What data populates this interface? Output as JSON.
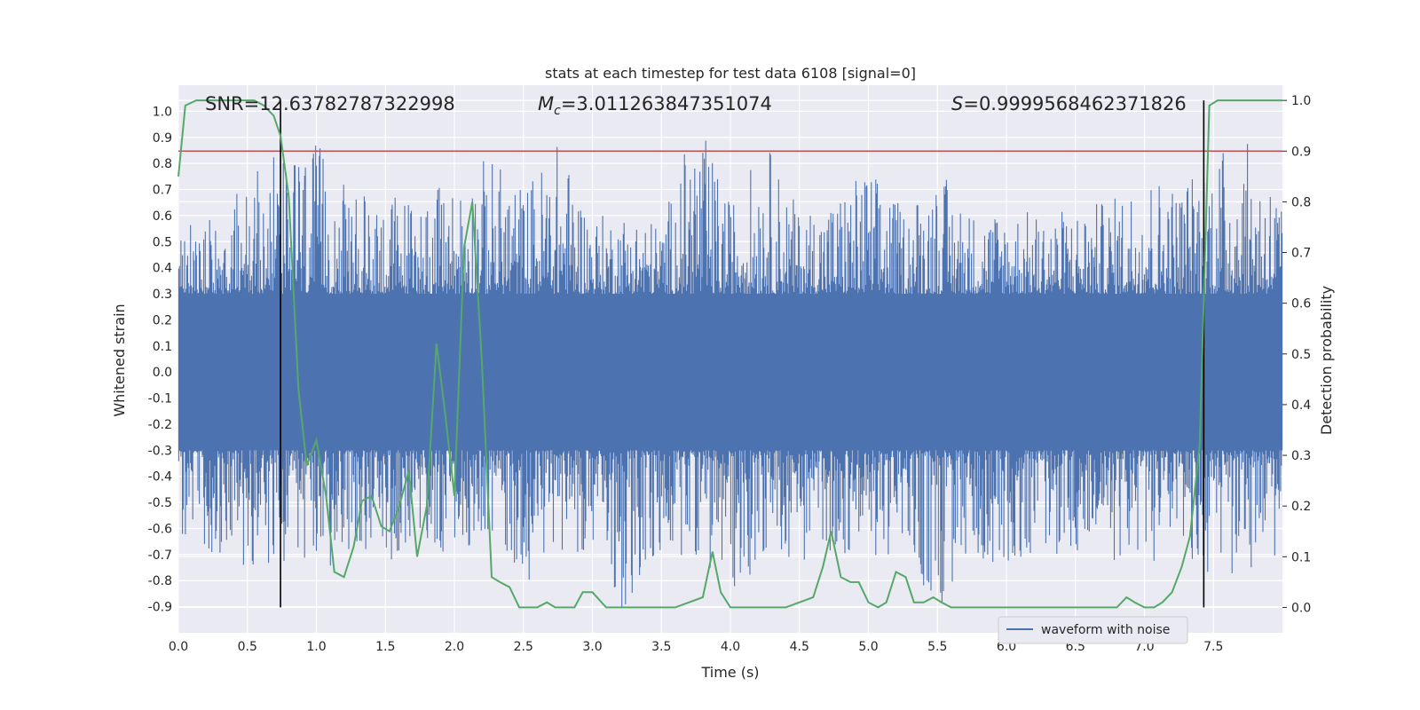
{
  "chart_data": {
    "type": "line",
    "title": "stats at each timestep for test data 6108 [signal=0]",
    "xlabel": "Time (s)",
    "ylabel_left": "Whitened strain",
    "ylabel_right": "Detection probability",
    "xlim": [
      0,
      8
    ],
    "ylim_left": [
      -1.0,
      1.1
    ],
    "ylim_right": [
      -0.05,
      1.03
    ],
    "x_ticks": [
      "0.0",
      "0.5",
      "1.0",
      "1.5",
      "2.0",
      "2.5",
      "3.0",
      "3.5",
      "4.0",
      "4.5",
      "5.0",
      "5.5",
      "6.0",
      "6.5",
      "7.0",
      "7.5"
    ],
    "y_left_ticks": [
      "1.0",
      "0.9",
      "0.8",
      "0.7",
      "0.6",
      "0.5",
      "0.4",
      "0.3",
      "0.2",
      "0.1",
      "0.0",
      "-0.1",
      "-0.2",
      "-0.3",
      "-0.4",
      "-0.5",
      "-0.6",
      "-0.7",
      "-0.8",
      "-0.9"
    ],
    "y_right_ticks": [
      "1.0",
      "0.9",
      "0.8",
      "0.7",
      "0.6",
      "0.5",
      "0.4",
      "0.3",
      "0.2",
      "0.1",
      "0.0"
    ],
    "grid": true,
    "annotations": {
      "snr": "SNR=12.63782787322998",
      "mc_symbol": "M",
      "mc_sub": "c",
      "mc_value": "=3.011263847351074",
      "s_symbol": "S",
      "s_value": "=0.9999568462371826"
    },
    "threshold": {
      "y": 0.9,
      "axis": "right",
      "color": "#c44e52"
    },
    "vlines": [
      0.74,
      7.43
    ],
    "legend": {
      "label": "waveform with noise",
      "placement": "lower-right"
    },
    "series": [
      {
        "name": "waveform with noise",
        "axis": "left",
        "color": "#4c72b0",
        "envelope": {
          "x": [
            0.0,
            0.25,
            0.5,
            0.75,
            1.0,
            1.25,
            1.5,
            1.75,
            2.0,
            2.25,
            2.5,
            2.75,
            3.0,
            3.25,
            3.5,
            3.75,
            4.0,
            4.25,
            4.5,
            4.75,
            5.0,
            5.25,
            5.5,
            5.75,
            6.0,
            6.25,
            6.5,
            6.75,
            7.0,
            7.25,
            7.5,
            7.75,
            8.0
          ],
          "upper": [
            0.52,
            0.65,
            0.73,
            0.88,
            0.88,
            0.68,
            0.7,
            0.68,
            0.73,
            0.84,
            0.72,
            0.89,
            0.6,
            0.62,
            0.58,
            0.99,
            0.65,
            0.9,
            0.62,
            0.68,
            0.8,
            0.63,
            0.79,
            0.62,
            0.64,
            0.61,
            0.64,
            0.66,
            0.79,
            0.73,
            0.87,
            0.88,
            0.7
          ],
          "lower": [
            -0.61,
            -0.72,
            -0.76,
            -0.72,
            -0.82,
            -0.67,
            -0.73,
            -0.7,
            -0.7,
            -0.62,
            -0.82,
            -0.68,
            -0.7,
            -0.95,
            -0.73,
            -0.7,
            -0.87,
            -0.71,
            -0.73,
            -0.7,
            -0.72,
            -0.7,
            -0.95,
            -0.72,
            -0.74,
            -0.7,
            -0.71,
            -0.73,
            -0.74,
            -0.72,
            -0.79,
            -0.8,
            -0.72
          ]
        }
      },
      {
        "name": "detection probability",
        "axis": "right",
        "color": "#55a868",
        "x": [
          0.0,
          0.05,
          0.13,
          0.25,
          0.4,
          0.55,
          0.62,
          0.69,
          0.74,
          0.8,
          0.87,
          0.93,
          1.0,
          1.07,
          1.13,
          1.2,
          1.27,
          1.33,
          1.4,
          1.47,
          1.53,
          1.6,
          1.67,
          1.73,
          1.8,
          1.87,
          1.93,
          2.0,
          2.07,
          2.13,
          2.2,
          2.27,
          2.33,
          2.4,
          2.47,
          2.53,
          2.6,
          2.67,
          2.73,
          2.8,
          2.87,
          2.93,
          3.0,
          3.1,
          3.2,
          3.3,
          3.4,
          3.5,
          3.6,
          3.7,
          3.8,
          3.87,
          3.93,
          4.0,
          4.1,
          4.2,
          4.3,
          4.4,
          4.5,
          4.6,
          4.67,
          4.73,
          4.8,
          4.87,
          4.93,
          5.0,
          5.07,
          5.13,
          5.2,
          5.27,
          5.33,
          5.4,
          5.47,
          5.53,
          5.6,
          5.7,
          5.8,
          5.9,
          6.0,
          6.1,
          6.2,
          6.3,
          6.4,
          6.5,
          6.6,
          6.7,
          6.8,
          6.87,
          6.93,
          7.0,
          7.07,
          7.13,
          7.2,
          7.27,
          7.33,
          7.4,
          7.47,
          7.53,
          7.6,
          7.7,
          7.8,
          7.9,
          8.0
        ],
        "y": [
          0.85,
          0.99,
          1.0,
          1.0,
          1.0,
          1.0,
          0.99,
          0.97,
          0.93,
          0.81,
          0.43,
          0.28,
          0.33,
          0.22,
          0.07,
          0.06,
          0.12,
          0.21,
          0.22,
          0.16,
          0.15,
          0.2,
          0.27,
          0.1,
          0.2,
          0.52,
          0.39,
          0.22,
          0.71,
          0.8,
          0.48,
          0.06,
          0.05,
          0.04,
          0.0,
          0.0,
          0.0,
          0.01,
          0.0,
          0.0,
          0.0,
          0.03,
          0.03,
          0.0,
          0.0,
          0.0,
          0.0,
          0.0,
          0.0,
          0.01,
          0.02,
          0.11,
          0.03,
          0.0,
          0.0,
          0.0,
          0.0,
          0.0,
          0.01,
          0.02,
          0.08,
          0.15,
          0.06,
          0.05,
          0.05,
          0.01,
          0.0,
          0.01,
          0.07,
          0.06,
          0.01,
          0.01,
          0.02,
          0.01,
          0.0,
          0.0,
          0.0,
          0.0,
          0.0,
          0.0,
          0.0,
          0.0,
          0.0,
          0.0,
          0.0,
          0.0,
          0.0,
          0.02,
          0.01,
          0.0,
          0.0,
          0.01,
          0.03,
          0.08,
          0.14,
          0.32,
          0.99,
          1.0,
          1.0,
          1.0,
          1.0,
          1.0,
          1.0
        ]
      }
    ]
  }
}
